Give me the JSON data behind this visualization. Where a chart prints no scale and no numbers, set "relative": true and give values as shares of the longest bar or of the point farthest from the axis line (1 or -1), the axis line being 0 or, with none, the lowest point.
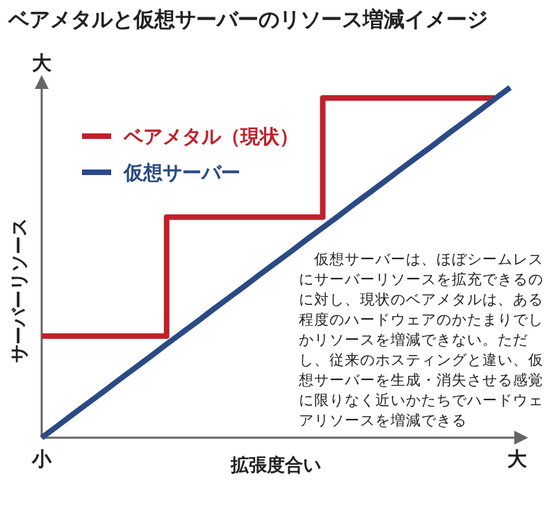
{
  "chart_data": {
    "type": "line",
    "title": "ベアメタルと仮想サーバーのリソース増減イメージ",
    "xlabel": "拡張度合い",
    "ylabel": "サーバーリソース",
    "relative": true,
    "legend": "top left",
    "grid": false,
    "categories": [
      null,
      null,
      null,
      null,
      null,
      null,
      null,
      null,
      null,
      null,
      null,
      null,
      null,
      null,
      null,
      null,
      null,
      null,
      null,
      null,
      null,
      null,
      null,
      null,
      null,
      null,
      null,
      null,
      null,
      null,
      null
    ],
    "series": [
      {
        "name": "ベアメタル（現状）",
        "type": "step",
        "color": "#c0202a",
        "values": [
          0.29,
          0.29,
          0.29,
          0.29,
          0.29,
          0.29,
          0.29,
          0.29,
          0.63,
          0.63,
          0.63,
          0.63,
          0.63,
          0.63,
          0.63,
          0.63,
          0.63,
          0.63,
          0.97,
          0.97,
          0.97,
          0.97,
          0.97,
          0.97,
          0.97,
          0.97,
          0.97,
          0.97,
          0.97,
          0.97,
          null
        ]
      },
      {
        "name": "仮想サーバー",
        "type": "line",
        "color": "#2b4a85",
        "values": [
          0,
          0.033,
          0.067,
          0.1,
          0.133,
          0.167,
          0.2,
          0.233,
          0.267,
          0.3,
          0.333,
          0.367,
          0.4,
          0.433,
          0.467,
          0.5,
          0.533,
          0.567,
          0.6,
          0.633,
          0.667,
          0.7,
          0.733,
          0.767,
          0.8,
          0.833,
          0.867,
          0.9,
          0.933,
          0.967,
          1
        ]
      }
    ],
    "annotations": [
      "大",
      "小",
      "大",
      "　仮想サーバーは、ほぼシームレスにサーバーリソースを拡充できるのに対し、現状のベアメタルは、ある程度のハードウェアのかたまりでしかリソースを増減できない。ただし、従来のホスティングと違い、仮想サーバーを生成・消失させる感覚に限りなく近いかたちでハードウェアリソースを増減できる"
    ]
  }
}
